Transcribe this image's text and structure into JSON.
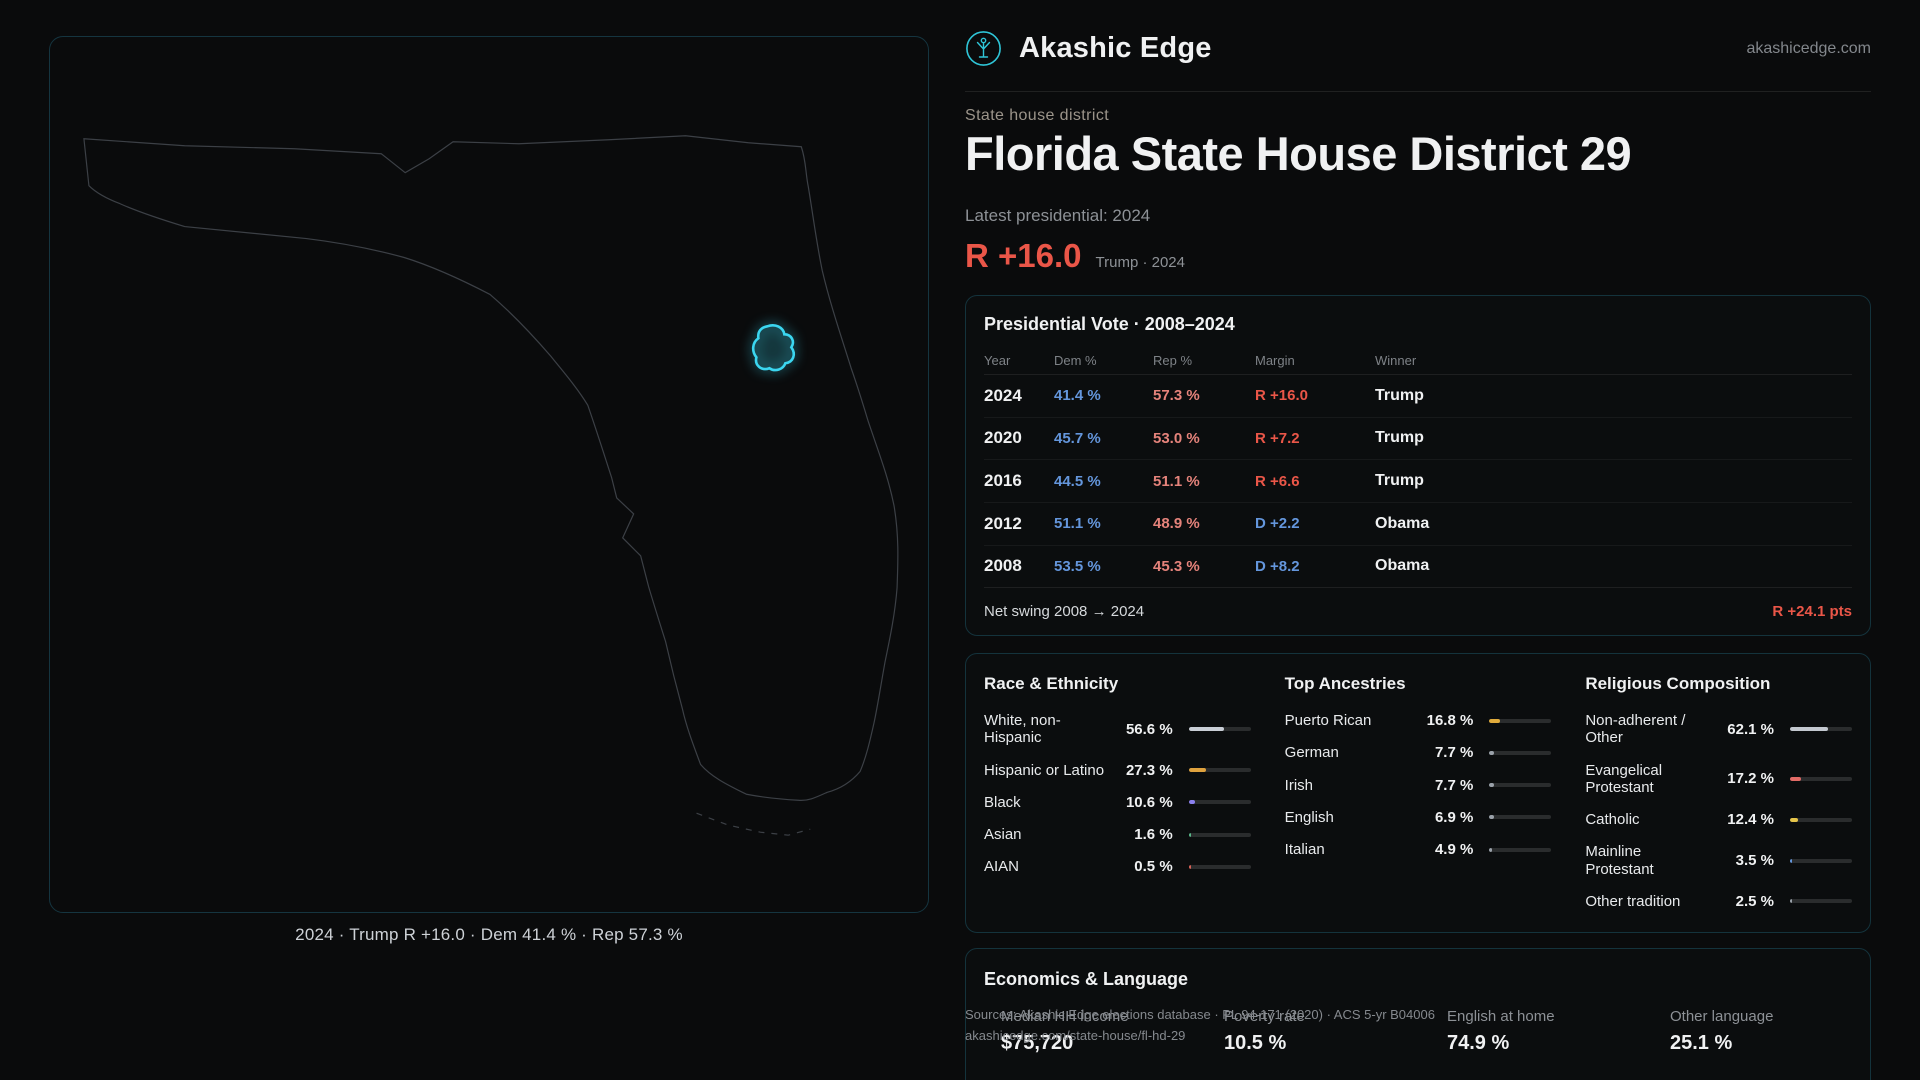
{
  "brand": {
    "name": "Akashic Edge",
    "domain": "akashicedge.com"
  },
  "map": {
    "caption": "2024 · Trump R +16.0 · Dem 41.4 % · Rep 57.3 %"
  },
  "header": {
    "kicker": "State house district",
    "title": "Florida State House District 29",
    "latest_label": "Latest presidential: 2024",
    "margin_value": "R +16.0",
    "margin_context": "Trump · 2024"
  },
  "presidential": {
    "title": "Presidential Vote · 2008–2024",
    "columns": [
      "Year",
      "Dem %",
      "Rep %",
      "Margin",
      "Winner"
    ],
    "rows": [
      {
        "year": "2024",
        "dem": "41.4 %",
        "rep": "57.3 %",
        "margin": "R +16.0",
        "margin_color": "#ea5648",
        "winner": "Trump"
      },
      {
        "year": "2020",
        "dem": "45.7 %",
        "rep": "53.0 %",
        "margin": "R +7.2",
        "margin_color": "#ea5648",
        "winner": "Trump"
      },
      {
        "year": "2016",
        "dem": "44.5 %",
        "rep": "51.1 %",
        "margin": "R +6.6",
        "margin_color": "#ea5648",
        "winner": "Trump"
      },
      {
        "year": "2012",
        "dem": "51.1 %",
        "rep": "48.9 %",
        "margin": "D +2.2",
        "margin_color": "#6496dc",
        "winner": "Obama"
      },
      {
        "year": "2008",
        "dem": "53.5 %",
        "rep": "45.3 %",
        "margin": "D +8.2",
        "margin_color": "#6496dc",
        "winner": "Obama"
      }
    ],
    "net_swing_label": "Net swing 2008 → 2024",
    "net_swing_value": "R +24.1 pts"
  },
  "demographics": {
    "race": {
      "title": "Race & Ethnicity",
      "rows": [
        {
          "label": "White, non-Hispanic",
          "value": "56.6 %",
          "pct": 56.6,
          "color": "#c9ced6"
        },
        {
          "label": "Hispanic or Latino",
          "value": "27.3 %",
          "pct": 27.3,
          "color": "#dfa23e"
        },
        {
          "label": "Black",
          "value": "10.6 %",
          "pct": 10.6,
          "color": "#8b80ef"
        },
        {
          "label": "Asian",
          "value": "1.6 %",
          "pct": 1.6,
          "color": "#58b788"
        },
        {
          "label": "AIAN",
          "value": "0.5 %",
          "pct": 0.5,
          "color": "#d96055"
        }
      ]
    },
    "ancestries": {
      "title": "Top Ancestries",
      "rows": [
        {
          "label": "Puerto Rican",
          "value": "16.8 %",
          "pct": 16.8,
          "color": "#e0ab3c"
        },
        {
          "label": "German",
          "value": "7.7 %",
          "pct": 7.7,
          "color": "#9aa1a9"
        },
        {
          "label": "Irish",
          "value": "7.7 %",
          "pct": 7.7,
          "color": "#9aa1a9"
        },
        {
          "label": "English",
          "value": "6.9 %",
          "pct": 6.9,
          "color": "#9aa1a9"
        },
        {
          "label": "Italian",
          "value": "4.9 %",
          "pct": 4.9,
          "color": "#9aa1a9"
        }
      ]
    },
    "religion": {
      "title": "Religious Composition",
      "rows": [
        {
          "label": "Non-adherent / Other",
          "value": "62.1 %",
          "pct": 62.1,
          "color": "#c3c8cf"
        },
        {
          "label": "Evangelical Protestant",
          "value": "17.2 %",
          "pct": 17.2,
          "color": "#e26b66"
        },
        {
          "label": "Catholic",
          "value": "12.4 %",
          "pct": 12.4,
          "color": "#e5c44a"
        },
        {
          "label": "Mainline Protestant",
          "value": "3.5 %",
          "pct": 3.5,
          "color": "#6496dc"
        },
        {
          "label": "Other tradition",
          "value": "2.5 %",
          "pct": 2.5,
          "color": "#9aa1a9"
        }
      ]
    }
  },
  "economics": {
    "title": "Economics & Language",
    "stats": [
      {
        "label": "Median HH income",
        "value": "$75,720"
      },
      {
        "label": "Poverty rate",
        "value": "10.5 %"
      },
      {
        "label": "English at home",
        "value": "74.9 %"
      },
      {
        "label": "Other language",
        "value": "25.1 %"
      }
    ]
  },
  "footer": {
    "line1": "Sources: Akashic Edge elections database · PL 94-171 (2020) · ACS 5-yr B04006",
    "line2": "akashicedge.com/state-house/fl-hd-29"
  },
  "colors": {
    "rep_margin": "#ea5648",
    "dem_margin": "#6496dc",
    "dem_text": "#6496dc",
    "rep_text": "#e5837b",
    "accent_cyan": "#3bd6f0"
  }
}
